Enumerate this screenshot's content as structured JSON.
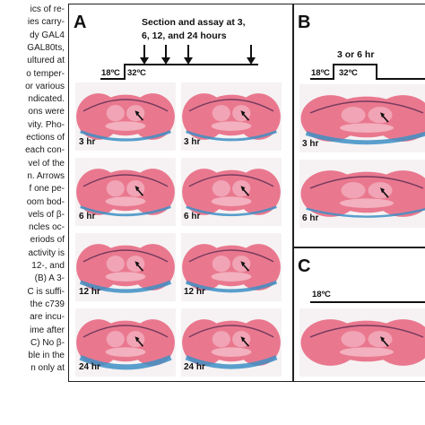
{
  "caption": {
    "lines": [
      "ics of re-",
      "ies carry-",
      "dy GAL4",
      "GAL80ts,",
      "ultured at",
      "o temper-",
      "or various",
      "ndicated.",
      "ons were",
      "vity. Pho-",
      "ections of",
      "each con-",
      "vel of the",
      "n. Arrows",
      "f one pe-",
      "oom bod-",
      "vels of β-",
      "ncles oc-",
      "eriods of",
      "activity is",
      " 12-, and",
      "(B) A 3-",
      "C is suffi-",
      "the c739",
      "are incu-",
      "ime after",
      "C) No β-",
      "ble in the",
      "n only at"
    ]
  },
  "panel_a": {
    "letter": "A",
    "timeline_title_line1": "Section and assay at 3,",
    "timeline_title_line2": "6, 12, and 24 hours",
    "temp_low": "18ºC",
    "temp_high": "32ºC",
    "time_labels": [
      "3 hr",
      "3 hr",
      "6 hr",
      "6 hr",
      "12 hr",
      "12 hr",
      "24 hr",
      "24 hr"
    ]
  },
  "panel_b": {
    "letter": "B",
    "timeline_title": "3 or 6 hr",
    "temp_low": "18ºC",
    "temp_high": "32ºC",
    "time_labels": [
      "3 hr",
      "6 hr"
    ]
  },
  "panel_c": {
    "letter": "C",
    "temp": "18ºC"
  },
  "colors": {
    "tissue_pink": "#e9788f",
    "tissue_light": "#f4b6c4",
    "stain_blue": "#3d8fc4",
    "border": "#222222"
  }
}
